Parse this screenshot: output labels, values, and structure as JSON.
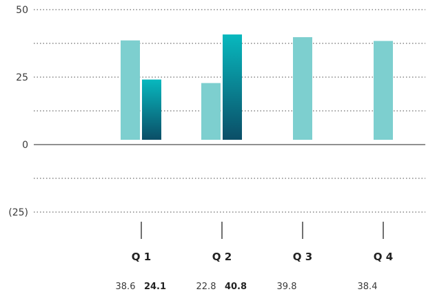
{
  "chart_data": {
    "type": "bar",
    "categories": [
      "Q 1",
      "Q 2",
      "Q 3",
      "Q 4"
    ],
    "yticks": [
      {
        "value": 50,
        "label": "50"
      },
      {
        "value": 25,
        "label": "25"
      },
      {
        "value": 0,
        "label": "0"
      },
      {
        "value": -25,
        "label": "(25)"
      }
    ],
    "ylim": [
      -25,
      50
    ],
    "grid": true,
    "series": [
      {
        "values": [
          38.6,
          22.8,
          39.8,
          38.4
        ],
        "labels": [
          "38.6",
          "22.8",
          "39.8",
          "38.4"
        ],
        "color": "#7dcfcf"
      },
      {
        "values": [
          24.1,
          40.8,
          null,
          null
        ],
        "labels": [
          "24.1",
          "40.8",
          "",
          ""
        ],
        "gradient": [
          "#08b8be",
          "#0b4e67"
        ]
      }
    ]
  }
}
